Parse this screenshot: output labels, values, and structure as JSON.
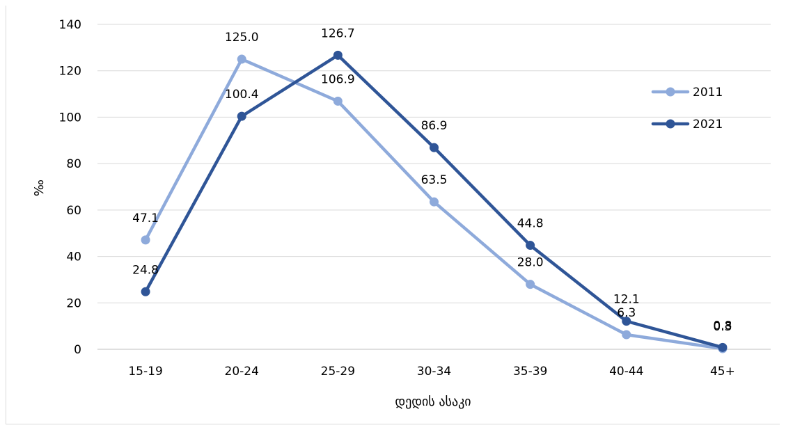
{
  "chart_data": {
    "type": "line",
    "categories": [
      "15-19",
      "20-24",
      "25-29",
      "30-34",
      "35-39",
      "40-44",
      "45+"
    ],
    "series": [
      {
        "name": "2011",
        "values": [
          47.1,
          125.0,
          106.9,
          63.5,
          28.0,
          6.3,
          0.3
        ],
        "labels": [
          "47.1",
          "125.0",
          "106.9",
          "63.5",
          "28.0",
          "6.3",
          "0.3"
        ],
        "color": "#8eaadb"
      },
      {
        "name": "2021",
        "values": [
          24.8,
          100.4,
          126.7,
          86.9,
          44.8,
          12.1,
          0.8
        ],
        "labels": [
          "24.8",
          "100.4",
          "126.7",
          "86.9",
          "44.8",
          "12.1",
          "0.8"
        ],
        "color": "#2f5597"
      }
    ],
    "title": "",
    "xlabel": "დედის ასაკი",
    "ylabel": "‰",
    "ylim": [
      0,
      140
    ],
    "yticks": [
      0,
      20,
      40,
      60,
      80,
      100,
      120,
      140
    ],
    "grid": true,
    "legend": "right"
  }
}
